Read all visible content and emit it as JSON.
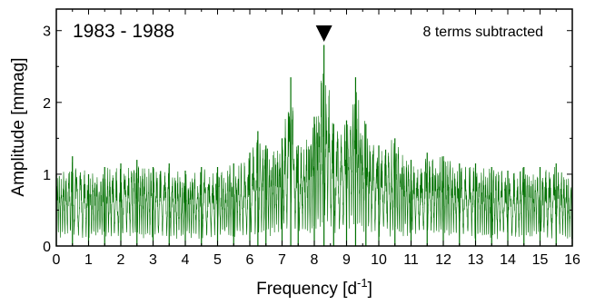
{
  "chart_data": {
    "type": "line",
    "title": "",
    "xlabel": "Frequency",
    "xlabel_unit": "[d",
    "xlabel_unit_sup": "-1",
    "xlabel_unit_close": "]",
    "ylabel": "Amplitude [mmag]",
    "xlim": [
      0,
      16
    ],
    "ylim": [
      0,
      3.3
    ],
    "xticks": [
      0,
      1,
      2,
      3,
      4,
      5,
      6,
      7,
      8,
      9,
      10,
      11,
      12,
      13,
      14,
      15,
      16
    ],
    "xtick_labels": [
      "0",
      "1",
      "2",
      "3",
      "4",
      "5",
      "6",
      "7",
      "8",
      "9",
      "10",
      "11",
      "12",
      "13",
      "14",
      "15",
      "16"
    ],
    "yticks": [
      0,
      1,
      2,
      3
    ],
    "ytick_labels": [
      "0",
      "1",
      "2",
      "3"
    ],
    "grid": false,
    "line_color": "#007000",
    "annotations": {
      "period": "1983 - 1988",
      "note": "8 terms subtracted"
    },
    "marker": {
      "type": "triangle-down",
      "x": 8.3
    },
    "series": [
      {
        "x": [
          0.0,
          0.5,
          1.0,
          1.5,
          2.0,
          2.5,
          3.0,
          3.5,
          4.0,
          4.5,
          5.0,
          5.5,
          6.0,
          6.25,
          6.5,
          7.0,
          7.27,
          7.5,
          8.0,
          8.3,
          8.6,
          9.0,
          9.28,
          9.6,
          10.0,
          10.5,
          11.0,
          11.5,
          12.0,
          12.5,
          13.0,
          13.5,
          14.0,
          14.5,
          15.0,
          15.5,
          16.0
        ],
        "y": [
          1.0,
          1.25,
          1.0,
          1.1,
          1.15,
          1.2,
          1.1,
          1.15,
          1.05,
          1.1,
          1.1,
          1.15,
          1.3,
          1.6,
          1.4,
          1.5,
          2.35,
          1.4,
          1.8,
          2.8,
          1.7,
          1.75,
          2.35,
          1.7,
          1.4,
          1.5,
          1.2,
          1.3,
          1.25,
          1.15,
          1.15,
          1.1,
          1.05,
          1.1,
          1.1,
          1.15,
          1.0
        ]
      }
    ]
  }
}
